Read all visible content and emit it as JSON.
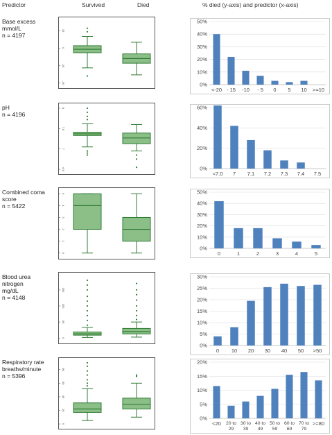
{
  "header": {
    "predictor": "Predictor",
    "survived": "Survived",
    "died": "Died",
    "pct_died": "% died (y-axis)  and predictor (x-axis)"
  },
  "colors": {
    "box_fill": "#8cbf88",
    "box_stroke": "#2e7b32",
    "outlier": "#2e7b32",
    "bar": "#4f81bd",
    "grid": "#d9d9d9",
    "frame": "#555555"
  },
  "predictors": [
    {
      "label_lines": [
        "Base excess",
        "mmol/L"
      ],
      "n": "n = 4197",
      "box": {
        "ylim": [
          -32,
          24
        ],
        "ticks": [
          {
            "v": -30,
            "label": "-30"
          },
          {
            "v": -15,
            "label": "-15"
          },
          {
            "v": 0,
            "label": "0"
          },
          {
            "v": 15,
            "label": "15"
          }
        ],
        "survived": {
          "min": -17,
          "q1": -4,
          "median": -1,
          "q3": 2,
          "max": 10,
          "outliers": [
            14,
            17,
            -24
          ]
        },
        "died": {
          "min": -23,
          "q1": -13,
          "median": -9,
          "q3": -5,
          "max": 5,
          "outliers": []
        }
      },
      "chart_data": {
        "type": "bar",
        "categories": [
          "<-20",
          "- 15",
          "-10",
          "- 5",
          "0",
          "5",
          "10",
          ">=10"
        ],
        "values": [
          40,
          22,
          11,
          7,
          3,
          2,
          3,
          0
        ],
        "ylim": [
          0,
          50
        ],
        "yticks": [
          "0%",
          "10%",
          "20%",
          "30%",
          "40%",
          "50%"
        ],
        "xlabel": "",
        "ylabel": ""
      }
    },
    {
      "label_lines": [
        "pH"
      ],
      "n": "n = 4196",
      "box": {
        "ylim": [
          6.45,
          8.05
        ],
        "ticks": [
          {
            "v": 6.5,
            "label": "6.5"
          },
          {
            "v": 7.0,
            "label": "7"
          },
          {
            "v": 7.5,
            "label": "7.5"
          },
          {
            "v": 8.0,
            "label": "8"
          }
        ],
        "survived": {
          "min": 7.05,
          "q1": 7.33,
          "median": 7.37,
          "q3": 7.41,
          "max": 7.62,
          "outliers": [
            7.72,
            7.8,
            7.9,
            8.0,
            6.95,
            6.9,
            6.85
          ]
        },
        "died": {
          "min": 6.95,
          "q1": 7.13,
          "median": 7.27,
          "q3": 7.39,
          "max": 7.6,
          "outliers": [
            6.85,
            6.75,
            6.55
          ]
        }
      },
      "chart_data": {
        "type": "bar",
        "categories": [
          "<7.0",
          "7",
          "7.1",
          "7.2",
          "7.3",
          "7.4",
          "7.5"
        ],
        "values": [
          62,
          42,
          28,
          18,
          8,
          6,
          0
        ],
        "ylim": [
          0,
          60
        ],
        "yticks": [
          "0%",
          "20%",
          "40%",
          "60%"
        ],
        "xlabel": "",
        "ylabel": ""
      }
    },
    {
      "label_lines": [
        "Combined coma",
        "score"
      ],
      "n": "n = 5422",
      "box": {
        "ylim": [
          -0.25,
          5.25
        ],
        "ticks": [
          {
            "v": 0,
            "label": "0"
          },
          {
            "v": 1,
            "label": "1"
          },
          {
            "v": 2,
            "label": "2"
          },
          {
            "v": 3,
            "label": "3"
          },
          {
            "v": 4,
            "label": "4"
          },
          {
            "v": 5,
            "label": "5"
          }
        ],
        "survived": {
          "min": 0,
          "q1": 2,
          "median": 4,
          "q3": 5,
          "max": 5,
          "outliers": []
        },
        "died": {
          "min": 0,
          "q1": 1,
          "median": 2,
          "q3": 3,
          "max": 5,
          "outliers": []
        }
      },
      "chart_data": {
        "type": "bar",
        "categories": [
          "0",
          "1",
          "2",
          "3",
          "4",
          "5"
        ],
        "values": [
          42,
          18,
          18,
          9,
          6,
          3
        ],
        "ylim": [
          0,
          50
        ],
        "yticks": [
          "0%",
          "10%",
          "20%",
          "30%",
          "40%",
          "50%"
        ],
        "xlabel": "",
        "ylabel": ""
      }
    },
    {
      "label_lines": [
        "Blood urea",
        "nitrogen",
        "mg/dL"
      ],
      "n": "n = 4148",
      "box": {
        "ylim": [
          -8,
          195
        ],
        "ticks": [
          {
            "v": 0,
            "label": "0"
          },
          {
            "v": 50,
            "label": "50"
          },
          {
            "v": 100,
            "label": "100"
          },
          {
            "v": 150,
            "label": "150"
          }
        ],
        "survived": {
          "min": 2,
          "q1": 9,
          "median": 13,
          "q3": 19,
          "max": 33,
          "outliers": [
            40,
            55,
            70,
            85,
            100,
            115,
            130,
            150,
            165,
            180
          ]
        },
        "died": {
          "min": 3,
          "q1": 13,
          "median": 20,
          "q3": 30,
          "max": 50,
          "outliers": [
            58,
            70,
            85,
            100,
            118,
            135,
            150,
            170
          ]
        }
      },
      "chart_data": {
        "type": "bar",
        "categories": [
          "0",
          "10",
          "20",
          "30",
          "40",
          "50",
          ">50"
        ],
        "values": [
          4,
          8,
          19.5,
          25.5,
          27,
          26,
          26.5
        ],
        "ylim": [
          0,
          30
        ],
        "yticks": [
          "0%",
          "5%",
          "10%",
          "15%",
          "20%",
          "25%",
          "30%"
        ],
        "xlabel": "",
        "ylabel": ""
      }
    },
    {
      "label_lines": [
        "Respiratory rate",
        "breaths/minute"
      ],
      "n": "n = 5396",
      "box": {
        "ylim": [
          -3,
          93
        ],
        "ticks": [
          {
            "v": 0,
            "label": "0"
          },
          {
            "v": 20,
            "label": "20"
          },
          {
            "v": 40,
            "label": "40"
          },
          {
            "v": 60,
            "label": "60"
          },
          {
            "v": 80,
            "label": "80"
          }
        ],
        "survived": {
          "min": 5,
          "q1": 17,
          "median": 22,
          "q3": 31,
          "max": 52,
          "outliers": [
            56,
            60,
            65,
            72,
            78,
            85,
            90
          ]
        },
        "died": {
          "min": 10,
          "q1": 22,
          "median": 29,
          "q3": 38,
          "max": 60,
          "outliers": [
            70,
            72
          ]
        }
      },
      "chart_data": {
        "type": "bar",
        "categories": [
          "<20",
          "20 to 29",
          "30 to 39",
          "40 to 49",
          "50 to 59",
          "60 to 69",
          "70 to 79",
          ">=80"
        ],
        "values": [
          11.5,
          4.5,
          6,
          8,
          10.5,
          15.5,
          16.5,
          13.5
        ],
        "ylim": [
          0,
          20
        ],
        "yticks": [
          "0%",
          "5%",
          "10%",
          "15%",
          "20%"
        ],
        "xlabel": "",
        "ylabel": ""
      }
    }
  ]
}
